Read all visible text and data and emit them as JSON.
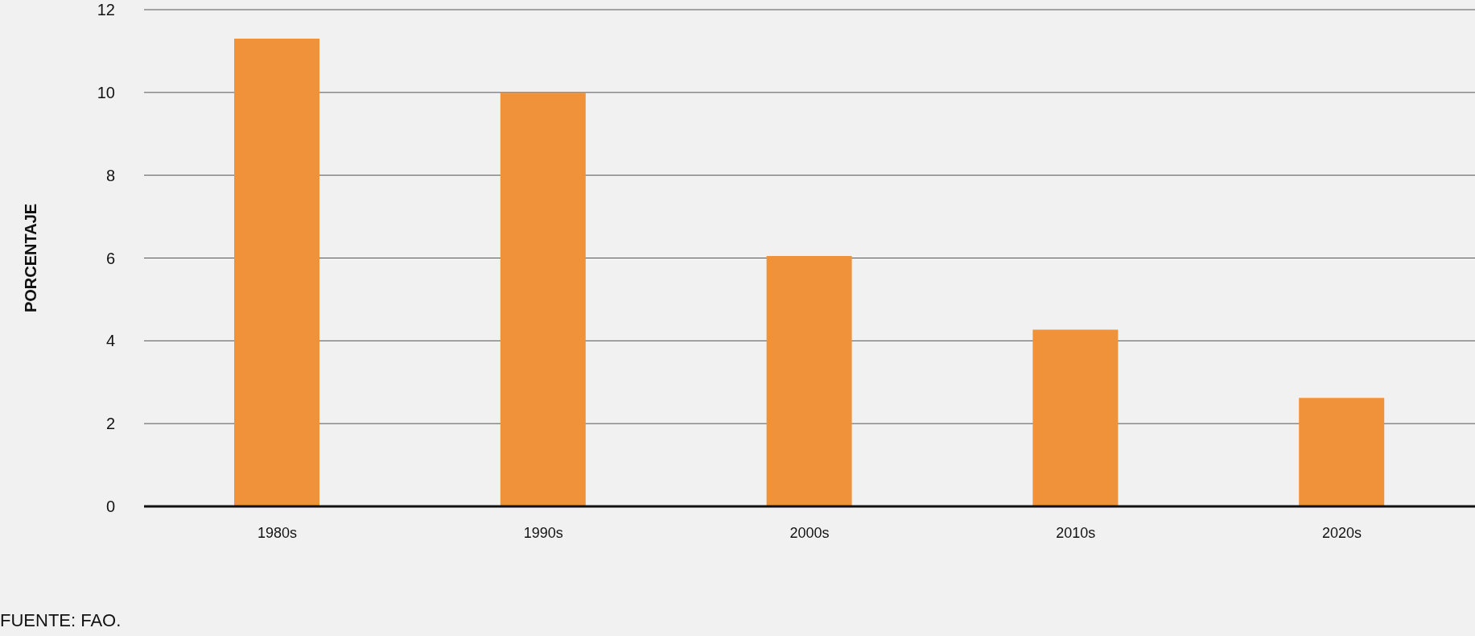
{
  "chart_data": {
    "type": "bar",
    "ylabel": "PORCENTAJE",
    "categories": [
      "1980s",
      "1990s",
      "2000s",
      "2010s",
      "2020s"
    ],
    "values": [
      11.3,
      10.0,
      6.05,
      4.27,
      2.62
    ],
    "color": "#f0923a",
    "ylim": [
      0,
      12
    ],
    "yticks": [
      0,
      2,
      4,
      6,
      8,
      10,
      12
    ],
    "grid": "y",
    "annotations": [
      "FUENTE: FAO."
    ]
  }
}
